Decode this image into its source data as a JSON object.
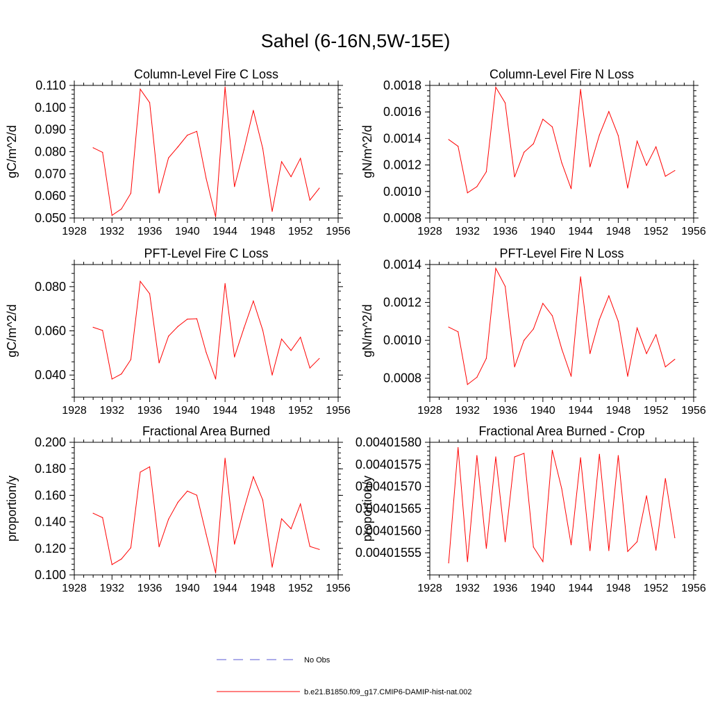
{
  "title": "Sahel (6-16N,5W-15E)",
  "series_color": "#ff0000",
  "obs_color": "#5a5ad6",
  "legend": {
    "obs_label": "No Obs",
    "model_label": "b.e21.B1850.f09_g17.CMIP6-DAMIP-hist-nat.002"
  },
  "chart_data": [
    {
      "type": "line",
      "title": "Column-Level Fire C Loss",
      "ylabel": "gC/m^2/d",
      "xlim": [
        1928,
        1956
      ],
      "xticks": [
        "1928",
        "1932",
        "1936",
        "1940",
        "1944",
        "1948",
        "1952",
        "1956"
      ],
      "ylim": [
        0.05,
        0.11
      ],
      "yticks": [
        "0.050",
        "0.060",
        "0.070",
        "0.080",
        "0.090",
        "0.100",
        "0.110"
      ],
      "x": [
        1930,
        1931,
        1932,
        1933,
        1934,
        1935,
        1936,
        1937,
        1938,
        1939,
        1940,
        1941,
        1942,
        1943,
        1944,
        1945,
        1946,
        1947,
        1948,
        1949,
        1950,
        1951,
        1952,
        1953,
        1954
      ],
      "series": [
        {
          "name": "b.e21.B1850.f09_g17.CMIP6-DAMIP-hist-nat.002",
          "values": [
            0.0818,
            0.0797,
            0.0512,
            0.0541,
            0.0612,
            0.1083,
            0.1022,
            0.0613,
            0.0772,
            0.0822,
            0.0875,
            0.0892,
            0.0678,
            0.0505,
            0.1093,
            0.0642,
            0.0808,
            0.0987,
            0.0815,
            0.053,
            0.0755,
            0.0687,
            0.077,
            0.0581,
            0.0635
          ]
        }
      ]
    },
    {
      "type": "line",
      "title": "Column-Level Fire N Loss",
      "ylabel": "gN/m^2/d",
      "xlim": [
        1928,
        1956
      ],
      "xticks": [
        "1928",
        "1932",
        "1936",
        "1940",
        "1944",
        "1948",
        "1952",
        "1956"
      ],
      "ylim": [
        0.0008,
        0.0018
      ],
      "yticks": [
        "0.0008",
        "0.0010",
        "0.0012",
        "0.0014",
        "0.0016",
        "0.0018"
      ],
      "x": [
        1930,
        1931,
        1932,
        1933,
        1934,
        1935,
        1936,
        1937,
        1938,
        1939,
        1940,
        1941,
        1942,
        1943,
        1944,
        1945,
        1946,
        1947,
        1948,
        1949,
        1950,
        1951,
        1952,
        1953,
        1954
      ],
      "series": [
        {
          "name": "b.e21.B1850.f09_g17.CMIP6-DAMIP-hist-nat.002",
          "values": [
            0.001392,
            0.001341,
            0.00099,
            0.001037,
            0.001149,
            0.001786,
            0.001668,
            0.00111,
            0.001296,
            0.00136,
            0.001545,
            0.001487,
            0.001217,
            0.001021,
            0.00177,
            0.001186,
            0.001426,
            0.001603,
            0.001421,
            0.001026,
            0.00138,
            0.001197,
            0.001337,
            0.001115,
            0.001158
          ]
        }
      ]
    },
    {
      "type": "line",
      "title": "PFT-Level Fire C Loss",
      "ylabel": "gC/m^2/d",
      "xlim": [
        1928,
        1956
      ],
      "xticks": [
        "1928",
        "1932",
        "1936",
        "1940",
        "1944",
        "1948",
        "1952",
        "1956"
      ],
      "ylim": [
        0.03,
        0.09
      ],
      "yticks": [
        "0.040",
        "0.060",
        "0.080"
      ],
      "ytick_values": [
        0.04,
        0.06,
        0.08
      ],
      "x": [
        1930,
        1931,
        1932,
        1933,
        1934,
        1935,
        1936,
        1937,
        1938,
        1939,
        1940,
        1941,
        1942,
        1943,
        1944,
        1945,
        1946,
        1947,
        1948,
        1949,
        1950,
        1951,
        1952,
        1953,
        1954
      ],
      "series": [
        {
          "name": "b.e21.B1850.f09_g17.CMIP6-DAMIP-hist-nat.002",
          "values": [
            0.0616,
            0.0602,
            0.0382,
            0.0405,
            0.047,
            0.0824,
            0.0768,
            0.0455,
            0.0576,
            0.062,
            0.0653,
            0.0655,
            0.0502,
            0.0382,
            0.0814,
            0.0482,
            0.0612,
            0.0735,
            0.0603,
            0.04,
            0.0563,
            0.0511,
            0.0571,
            0.0432,
            0.0475
          ]
        }
      ]
    },
    {
      "type": "line",
      "title": "PFT-Level Fire N Loss",
      "ylabel": "gN/m^2/d",
      "xlim": [
        1928,
        1956
      ],
      "xticks": [
        "1928",
        "1932",
        "1936",
        "1940",
        "1944",
        "1948",
        "1952",
        "1956"
      ],
      "ylim": [
        0.0007,
        0.0014
      ],
      "yticks": [
        "0.0008",
        "0.0010",
        "0.0012",
        "0.0014"
      ],
      "ytick_values": [
        0.0008,
        0.001,
        0.0012,
        0.0014
      ],
      "x": [
        1930,
        1931,
        1932,
        1933,
        1934,
        1935,
        1936,
        1937,
        1938,
        1939,
        1940,
        1941,
        1942,
        1943,
        1944,
        1945,
        1946,
        1947,
        1948,
        1949,
        1950,
        1951,
        1952,
        1953,
        1954
      ],
      "series": [
        {
          "name": "b.e21.B1850.f09_g17.CMIP6-DAMIP-hist-nat.002",
          "values": [
            0.00107,
            0.001045,
            0.000767,
            0.000805,
            0.000905,
            0.00138,
            0.001285,
            0.00086,
            0.001,
            0.00106,
            0.001195,
            0.00113,
            0.000955,
            0.00081,
            0.001335,
            0.00093,
            0.00111,
            0.001235,
            0.0011,
            0.00081,
            0.001065,
            0.00093,
            0.00103,
            0.00086,
            0.0009
          ]
        }
      ]
    },
    {
      "type": "line",
      "title": "Fractional Area Burned",
      "ylabel": "proportion/y",
      "xlim": [
        1928,
        1956
      ],
      "xticks": [
        "1928",
        "1932",
        "1936",
        "1940",
        "1944",
        "1948",
        "1952",
        "1956"
      ],
      "ylim": [
        0.1,
        0.2
      ],
      "yticks": [
        "0.100",
        "0.120",
        "0.140",
        "0.160",
        "0.180",
        "0.200"
      ],
      "x": [
        1930,
        1931,
        1932,
        1933,
        1934,
        1935,
        1936,
        1937,
        1938,
        1939,
        1940,
        1941,
        1942,
        1943,
        1944,
        1945,
        1946,
        1947,
        1948,
        1949,
        1950,
        1951,
        1952,
        1953,
        1954
      ],
      "series": [
        {
          "name": "b.e21.B1850.f09_g17.CMIP6-DAMIP-hist-nat.002",
          "values": [
            0.1465,
            0.1432,
            0.1078,
            0.112,
            0.1205,
            0.1775,
            0.1815,
            0.1212,
            0.142,
            0.1548,
            0.1632,
            0.1601,
            0.1305,
            0.1015,
            0.188,
            0.1232,
            0.1495,
            0.174,
            0.1565,
            0.1058,
            0.1423,
            0.1348,
            0.1535,
            0.1215,
            0.1192
          ]
        }
      ]
    },
    {
      "type": "line",
      "title": "Fractional Area Burned - Crop",
      "ylabel": "proportion/y",
      "xlim": [
        1928,
        1956
      ],
      "xticks": [
        "1928",
        "1932",
        "1936",
        "1940",
        "1944",
        "1948",
        "1952",
        "1956"
      ],
      "ylim": [
        0.0040155,
        0.0040158
      ],
      "yticks": [
        "0.00401555",
        "0.00401560",
        "0.00401565",
        "0.00401570",
        "0.00401575",
        "0.00401580"
      ],
      "ytick_values": [
        0.00401555,
        0.0040156,
        0.00401565,
        0.0040157,
        0.00401575,
        0.0040158
      ],
      "x": [
        1930,
        1931,
        1932,
        1933,
        1934,
        1935,
        1936,
        1937,
        1938,
        1939,
        1940,
        1941,
        1942,
        1943,
        1944,
        1945,
        1946,
        1947,
        1948,
        1949,
        1950,
        1951,
        1952,
        1953,
        1954
      ],
      "series": [
        {
          "name": "b.e21.B1850.f09_g17.CMIP6-DAMIP-hist-nat.002",
          "values": [
            0.004015527,
            0.004015788,
            0.00401553,
            0.00401577,
            0.00401556,
            0.004015767,
            0.004015575,
            0.004015767,
            0.004015775,
            0.004015563,
            0.00401553,
            0.004015782,
            0.004015695,
            0.004015568,
            0.004015765,
            0.004015555,
            0.004015773,
            0.004015555,
            0.00401577,
            0.004015553,
            0.004015575,
            0.004015679,
            0.004015556,
            0.004015718,
            0.004015584
          ]
        }
      ]
    }
  ]
}
